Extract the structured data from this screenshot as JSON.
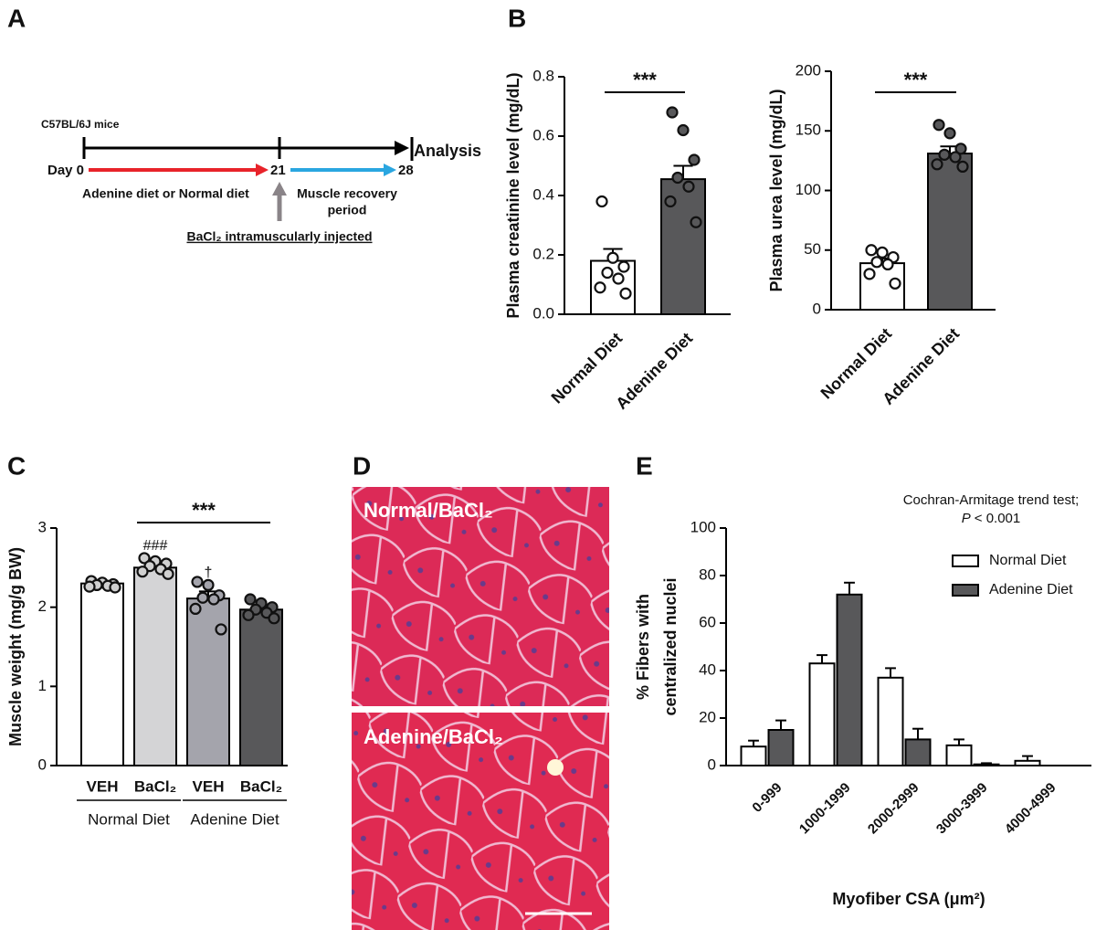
{
  "panel_labels": [
    "A",
    "B",
    "C",
    "D",
    "E"
  ],
  "panel_a": {
    "strain": "C57BL/6J mice",
    "end": "Analysis",
    "day0": "Day 0",
    "day21": "21",
    "day28": "28",
    "diet": "Adenine diet or Normal diet",
    "recovery": [
      "Muscle recovery",
      "period"
    ],
    "injection": "BaCl₂ intramuscularly injected"
  },
  "panel_d": {
    "images": [
      "Normal/BaCl₂",
      "Adenine/BaCl₂"
    ]
  },
  "chart_data": [
    {
      "type": "bar",
      "ylabel": "Plasma creatinine level (mg/dL)",
      "categories": [
        "Normal Diet",
        "Adenine Diet"
      ],
      "values": [
        0.18,
        0.455
      ],
      "errors": [
        0.04,
        0.045
      ],
      "colors": [
        "#ffffff",
        "#58585a"
      ],
      "point_colors": [
        "#ffffff",
        "#58585a"
      ],
      "points": [
        [
          0.38,
          0.19,
          0.16,
          0.14,
          0.12,
          0.09,
          0.07
        ],
        [
          0.68,
          0.62,
          0.52,
          0.46,
          0.43,
          0.38,
          0.31
        ]
      ],
      "significance": "***",
      "ylim": [
        0,
        0.8
      ],
      "yticks": [
        {
          "value": 0,
          "label": "0.0"
        },
        0.2,
        0.4,
        0.6,
        0.8
      ]
    },
    {
      "type": "bar",
      "ylabel": "Plasma urea level (mg/dL)",
      "categories": [
        "Normal Diet",
        "Adenine Diet"
      ],
      "values": [
        39,
        131
      ],
      "errors": [
        4,
        6
      ],
      "colors": [
        "#ffffff",
        "#58585a"
      ],
      "point_colors": [
        "#ffffff",
        "#58585a"
      ],
      "points": [
        [
          50,
          48,
          44,
          40,
          38,
          30,
          22
        ],
        [
          155,
          148,
          135,
          130,
          128,
          122,
          120
        ]
      ],
      "significance": "***",
      "ylim": [
        0,
        200
      ],
      "yticks": [
        0,
        50,
        100,
        150,
        200
      ]
    },
    {
      "type": "bar",
      "ylabel": "Muscle weight (mg/g BW)",
      "categories": [
        "VEH",
        "BaCl₂",
        "VEH",
        "BaCl₂"
      ],
      "groups": [
        "Normal Diet",
        "Adenine Diet"
      ],
      "values": [
        2.3,
        2.5,
        2.11,
        1.97
      ],
      "errors": [
        0.03,
        0.04,
        0.09,
        0.04
      ],
      "colors": [
        "#ffffff",
        "#d4d4d6",
        "#a4a4ac",
        "#58585a"
      ],
      "point_colors": [
        "#d0d0d0",
        "#d0d0d0",
        "#a4a4ac",
        "#58585a"
      ],
      "points": [
        [
          2.33,
          2.31,
          2.29,
          2.28,
          2.27,
          2.26,
          2.25
        ],
        [
          2.62,
          2.58,
          2.55,
          2.52,
          2.48,
          2.45,
          2.42
        ],
        [
          2.32,
          2.28,
          2.15,
          2.12,
          2.1,
          1.98,
          1.72
        ],
        [
          2.1,
          2.05,
          2.0,
          1.97,
          1.93,
          1.9,
          1.86
        ]
      ],
      "bar_labels": [
        null,
        "###",
        "†",
        null
      ],
      "significance": "***",
      "ylim": [
        0,
        3
      ],
      "yticks": [
        0,
        1,
        2,
        3
      ]
    },
    {
      "type": "bar",
      "ylabel": [
        "% Fibers with",
        "centralized nuclei"
      ],
      "xlabel": "Myofiber CSA (μm²)",
      "categories": [
        "0-999",
        "1000-1999",
        "2000-2999",
        "3000-3999",
        "4000-4999"
      ],
      "series": [
        {
          "name": "Normal Diet",
          "color": "#ffffff",
          "values": [
            8,
            43,
            37,
            8.5,
            2
          ],
          "errors": [
            2.5,
            3.5,
            4,
            2.5,
            2
          ]
        },
        {
          "name": "Adenine Diet",
          "color": "#58585a",
          "values": [
            15,
            72,
            11,
            0.5,
            0
          ],
          "errors": [
            4,
            5,
            4.5,
            0.5,
            0
          ]
        }
      ],
      "annotation": [
        "Cochran-Armitage trend test;",
        "P",
        "< 0.001"
      ],
      "legend": "upper right",
      "ylim": [
        0,
        100
      ],
      "yticks": [
        0,
        20,
        40,
        60,
        80,
        100
      ]
    }
  ]
}
